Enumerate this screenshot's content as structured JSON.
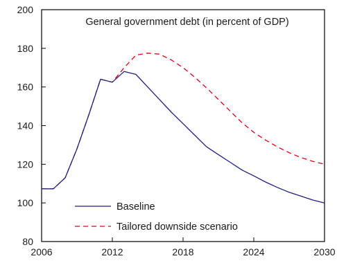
{
  "chart_data": {
    "type": "line",
    "title": "General government debt (in percent of GDP)",
    "xlabel": "",
    "ylabel": "",
    "xlim": [
      2006,
      2030
    ],
    "ylim": [
      80,
      200
    ],
    "x_ticks": [
      2006,
      2012,
      2018,
      2024,
      2030
    ],
    "y_ticks": [
      80,
      100,
      120,
      140,
      160,
      180,
      200
    ],
    "x_tick_labels": [
      "2006",
      "2012",
      "2018",
      "2024",
      "2030"
    ],
    "y_tick_labels": [
      "80",
      "100",
      "120",
      "140",
      "160",
      "180",
      "200"
    ],
    "grid": false,
    "legend_position": "bottom-left",
    "series": [
      {
        "name": "Baseline",
        "color": "#1f1f7a",
        "style": "solid",
        "x": [
          2006,
          2007,
          2008,
          2009,
          2010,
          2011,
          2012,
          2013,
          2014,
          2015,
          2016,
          2017,
          2018,
          2019,
          2020,
          2021,
          2022,
          2023,
          2024,
          2025,
          2026,
          2027,
          2028,
          2029,
          2030
        ],
        "values": [
          107.3,
          107.3,
          113.0,
          128.0,
          145.5,
          164.0,
          162.5,
          168.0,
          166.5,
          160.0,
          153.5,
          147.0,
          141.0,
          135.0,
          129.0,
          125.0,
          121.0,
          117.0,
          114.0,
          110.8,
          108.0,
          105.5,
          103.5,
          101.5,
          100.0
        ]
      },
      {
        "name": "Tailored downside scenario",
        "color": "#e0001a",
        "style": "dashed",
        "x": [
          2006,
          2007,
          2008,
          2009,
          2010,
          2011,
          2012,
          2013,
          2014,
          2015,
          2016,
          2017,
          2018,
          2019,
          2020,
          2021,
          2022,
          2023,
          2024,
          2025,
          2026,
          2027,
          2028,
          2029,
          2030
        ],
        "values": [
          107.3,
          107.3,
          113.0,
          128.0,
          145.5,
          164.0,
          162.5,
          170.0,
          176.5,
          177.5,
          177.0,
          174.0,
          170.0,
          165.0,
          159.5,
          153.5,
          147.5,
          141.5,
          136.5,
          132.5,
          129.0,
          126.0,
          123.5,
          121.5,
          120.0
        ]
      }
    ]
  }
}
